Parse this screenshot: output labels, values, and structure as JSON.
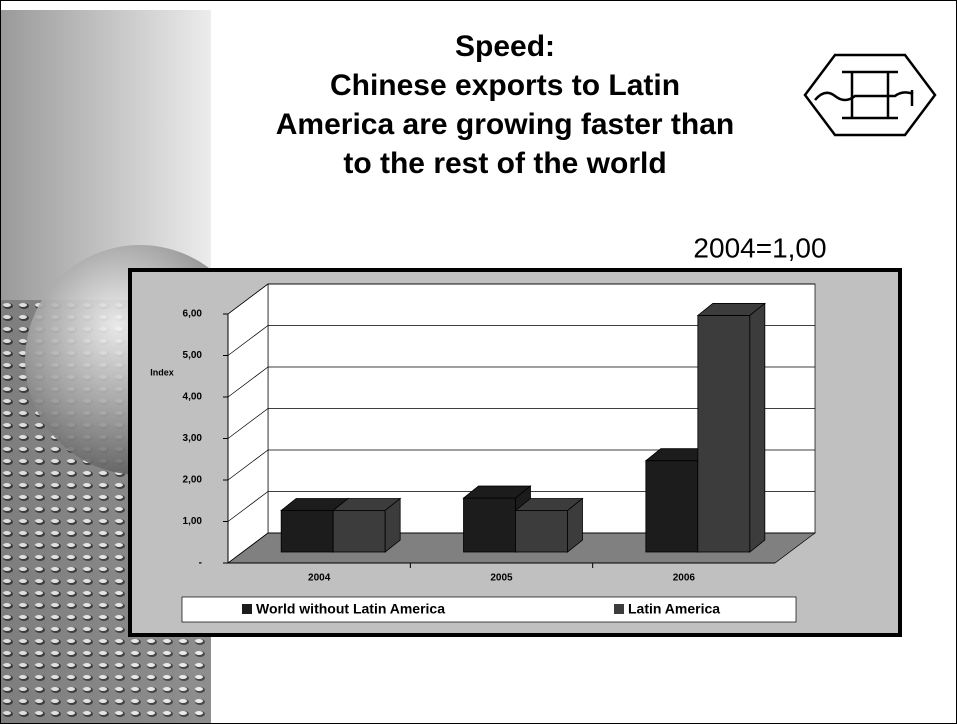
{
  "chart_data": {
    "type": "bar3d",
    "title": [
      "Speed:",
      "Chinese exports to Latin",
      "America are growing faster than",
      "to the rest of the world"
    ],
    "note": "2004=1,00",
    "ylabel": "Index",
    "categories": [
      "2004",
      "2005",
      "2006"
    ],
    "series": [
      {
        "name": "World without Latin America",
        "color": "#1c1c1c",
        "values": [
          1.0,
          1.3,
          2.2
        ]
      },
      {
        "name": "Latin America",
        "color": "#3c3c3c",
        "values": [
          1.0,
          1.0,
          5.7
        ]
      }
    ],
    "ylim": [
      0,
      6
    ],
    "yticks": [
      {
        "value": 0,
        "label": "-"
      },
      {
        "value": 1,
        "label": "1,00"
      },
      {
        "value": 2,
        "label": "2,00"
      },
      {
        "value": 3,
        "label": "3,00"
      },
      {
        "value": 4,
        "label": "4,00"
      },
      {
        "value": 5,
        "label": "5,00"
      },
      {
        "value": 6,
        "label": "6,00"
      }
    ],
    "grid": true,
    "legend": "bottom"
  }
}
